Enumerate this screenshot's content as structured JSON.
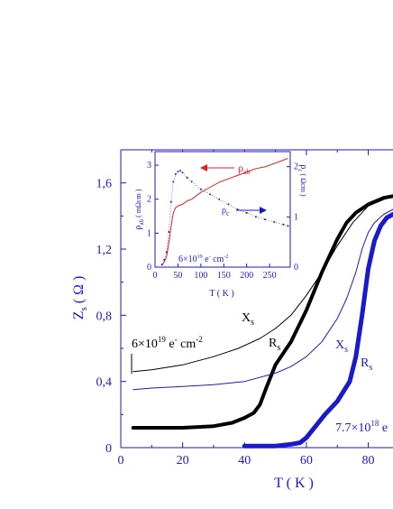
{
  "chart_data": [
    {
      "type": "line",
      "role": "main",
      "xlabel": "T ( K )",
      "ylabel": "Z",
      "ylabel_sub": "s",
      "ylabel_unit": "( Ω )",
      "xlim": [
        0,
        88
      ],
      "ylim": [
        0,
        1.8
      ],
      "x_ticks": [
        0,
        20,
        40,
        60,
        80
      ],
      "y_ticks": [
        0,
        0.4,
        0.8,
        1.2,
        1.6
      ],
      "y_tick_labels": [
        "0",
        "0,4",
        "0,8",
        "1,2",
        "1,6"
      ],
      "grid": false,
      "series": [
        {
          "name": "X_s (6×10^19)",
          "color": "#000000",
          "x": [
            4,
            10,
            20,
            30,
            38,
            45,
            50,
            55,
            60,
            65,
            70,
            75,
            80,
            85,
            88
          ],
          "y": [
            0.46,
            0.47,
            0.5,
            0.55,
            0.6,
            0.66,
            0.72,
            0.8,
            0.92,
            1.06,
            1.22,
            1.36,
            1.46,
            1.5,
            1.52
          ]
        },
        {
          "name": "R_s (6×10^19)",
          "color": "#000000",
          "x": [
            4,
            10,
            20,
            30,
            36,
            40,
            43,
            45,
            47,
            50,
            55,
            60,
            65,
            70,
            73,
            76,
            80,
            85,
            88
          ],
          "y": [
            0.12,
            0.12,
            0.12,
            0.13,
            0.15,
            0.18,
            0.21,
            0.26,
            0.36,
            0.5,
            0.64,
            0.83,
            1.06,
            1.26,
            1.36,
            1.42,
            1.47,
            1.51,
            1.52
          ]
        },
        {
          "name": "X_s (7.7×10^18)",
          "color": "#1a1acc",
          "x": [
            4,
            10,
            20,
            30,
            40,
            50,
            55,
            60,
            65,
            70,
            73,
            76,
            78,
            80,
            82,
            85,
            88
          ],
          "y": [
            0.35,
            0.36,
            0.37,
            0.38,
            0.4,
            0.45,
            0.49,
            0.55,
            0.64,
            0.78,
            0.9,
            1.06,
            1.2,
            1.3,
            1.36,
            1.41,
            1.44
          ]
        },
        {
          "name": "R_s (7.7×10^18)",
          "color": "#1a1acc",
          "x": [
            40,
            50,
            55,
            58,
            60,
            63,
            66,
            70,
            74,
            76,
            78,
            80,
            82,
            84,
            86,
            88
          ],
          "y": [
            0.01,
            0.01,
            0.02,
            0.03,
            0.06,
            0.13,
            0.2,
            0.28,
            0.4,
            0.55,
            0.8,
            1.08,
            1.25,
            1.34,
            1.39,
            1.41
          ]
        }
      ]
    },
    {
      "type": "line",
      "role": "inset",
      "xlabel": "T ( K )",
      "x_ticks": [
        0,
        50,
        100,
        150,
        200,
        250
      ],
      "y_left_ticks": [
        0,
        1,
        2,
        3
      ],
      "y_right_ticks": [
        0,
        1,
        2
      ],
      "xlim": [
        0,
        295
      ],
      "ylim_left": [
        0,
        3.4
      ],
      "ylim_right": [
        0,
        2.3
      ],
      "series": [
        {
          "name": "ρab",
          "color": "#e02020",
          "axis": "left",
          "x": [
            15,
            20,
            25,
            30,
            35,
            40,
            45,
            50,
            60,
            70,
            80,
            100,
            120,
            140,
            160,
            180,
            200,
            220,
            240,
            260,
            280,
            290
          ],
          "y": [
            0.05,
            0.15,
            0.3,
            0.7,
            1.2,
            1.6,
            1.75,
            1.8,
            1.85,
            1.95,
            2.0,
            2.2,
            2.35,
            2.5,
            2.6,
            2.7,
            2.8,
            2.9,
            2.95,
            3.05,
            3.15,
            3.2
          ]
        },
        {
          "name": "ρc",
          "color": "#1a1acc",
          "axis": "right",
          "x": [
            15,
            20,
            25,
            30,
            35,
            40,
            45,
            50,
            55,
            60,
            70,
            80,
            100,
            120,
            140,
            160,
            180,
            200,
            220,
            240,
            260,
            280,
            290
          ],
          "y": [
            0.05,
            0.15,
            0.3,
            0.7,
            1.3,
            1.7,
            1.85,
            1.9,
            1.92,
            1.88,
            1.78,
            1.7,
            1.55,
            1.45,
            1.35,
            1.25,
            1.15,
            1.08,
            1.0,
            0.95,
            0.9,
            0.85,
            0.82
          ]
        }
      ]
    }
  ],
  "annotations": {
    "xs_black": "X",
    "xs_black_sub": "s",
    "rs_black": "R",
    "rs_black_sub": "s",
    "xs_blue": "X",
    "xs_blue_sub": "s",
    "rs_blue": "R",
    "rs_blue_sub": "s",
    "doping_black_base": "6×10",
    "doping_black_exp": "19",
    "doping_black_unit": " e",
    "doping_black_sup": "-",
    "doping_black_tail": " cm",
    "doping_black_tail_sup": "-2",
    "doping_blue_base": "7.7×10",
    "doping_blue_exp": "18",
    "doping_blue_unit": " e",
    "inset_rho_ab": "ρ",
    "inset_rho_ab_sub": "ab",
    "inset_rho_c": "ρ",
    "inset_rho_c_sub": "c",
    "inset_left_label": "ρ",
    "inset_left_sub": "ab",
    "inset_left_unit": " ( mΩcm )",
    "inset_right_label": "ρ",
    "inset_right_sub": "c",
    "inset_right_unit": " ( Ωcm )",
    "inset_doping": "6×10",
    "inset_doping_exp": "19",
    "inset_doping_tail": " e",
    "inset_doping_sup": "-",
    "inset_doping_cm": "cm",
    "inset_doping_cm_sup": "-2"
  },
  "colors": {
    "axis": "#1a1acc",
    "black": "#000000",
    "blue": "#1a1acc",
    "red": "#e02020"
  }
}
